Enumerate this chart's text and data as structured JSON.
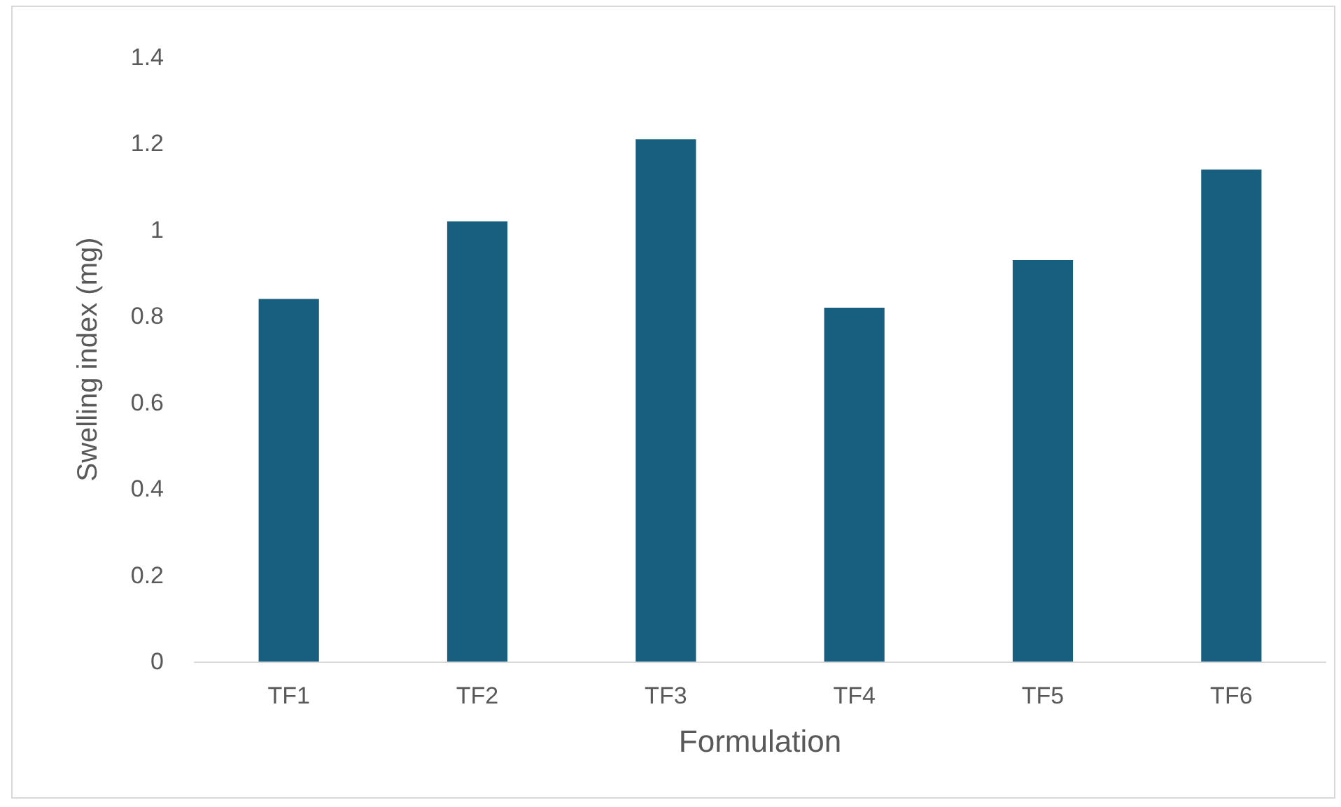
{
  "chart_data": {
    "type": "bar",
    "xlabel": "Formulation",
    "ylabel": "Swelling index (mg)",
    "categories": [
      "TF1",
      "TF2",
      "TF3",
      "TF4",
      "TF5",
      "TF6"
    ],
    "values": [
      0.84,
      1.02,
      1.21,
      0.82,
      0.93,
      1.14
    ],
    "color": "#175e7f",
    "ylim": [
      0,
      1.4
    ],
    "yticks": [
      0,
      0.2,
      0.4,
      0.6,
      0.8,
      1,
      1.2,
      1.4
    ],
    "grid": false
  }
}
